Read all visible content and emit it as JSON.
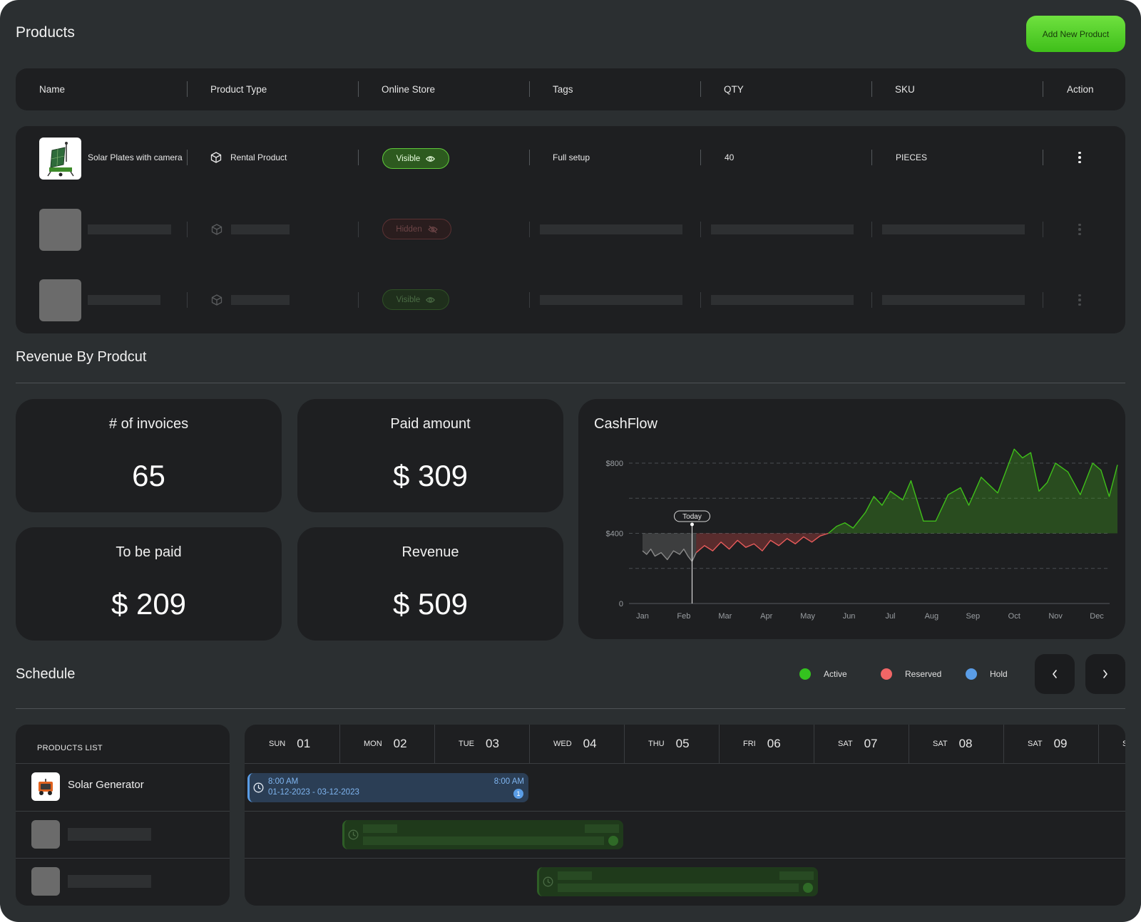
{
  "header": {
    "title": "Products",
    "add_button": "Add New Product"
  },
  "table": {
    "columns": [
      "Name",
      "Product Type",
      "Online Store",
      "Tags",
      "QTY",
      "SKU",
      "Action"
    ],
    "rows": [
      {
        "name": "Solar Plates with camera",
        "type": "Rental Product",
        "store": "Visible",
        "tags": "Full setup",
        "qty": "40",
        "sku": "PIECES"
      },
      {
        "store": "Hidden"
      },
      {
        "store": "Visible"
      }
    ]
  },
  "revenue": {
    "title": "Revenue By Prodcut",
    "stats": [
      {
        "label": "# of invoices",
        "value": "65"
      },
      {
        "label": "Paid amount",
        "value": "$ 309"
      },
      {
        "label": "To be paid",
        "value": "$ 209"
      },
      {
        "label": "Revenue",
        "value": "$ 509"
      }
    ]
  },
  "chart_data": {
    "type": "area",
    "title": "CashFlow",
    "categories": [
      "Jan",
      "Feb",
      "Mar",
      "Apr",
      "May",
      "Jun",
      "Jul",
      "Aug",
      "Sep",
      "Oct",
      "Nov",
      "Dec"
    ],
    "y_ticks": [
      "0",
      "$400",
      "$800"
    ],
    "ylim": [
      0,
      800
    ],
    "baseline": 400,
    "marker_label": "Today",
    "marker_x": 1.2,
    "grid": true,
    "series": [
      {
        "color": "#8a8a8a",
        "x": [
          0,
          0.1,
          0.2,
          0.3,
          0.45,
          0.6,
          0.75,
          0.9,
          1.0,
          1.1,
          1.2,
          1.3
        ],
        "values": [
          300,
          280,
          310,
          270,
          290,
          250,
          300,
          280,
          310,
          270,
          240,
          290
        ]
      },
      {
        "color": "#e85b5b",
        "x": [
          1.3,
          1.5,
          1.7,
          1.9,
          2.1,
          2.3,
          2.5,
          2.7,
          2.9,
          3.1,
          3.3,
          3.5,
          3.7,
          3.9,
          4.1,
          4.3,
          4.5
        ],
        "values": [
          290,
          330,
          300,
          350,
          310,
          360,
          320,
          340,
          300,
          360,
          330,
          370,
          340,
          380,
          350,
          385,
          400
        ]
      },
      {
        "color": "#3fbf1a",
        "x": [
          4.5,
          4.7,
          4.9,
          5.1,
          5.4,
          5.6,
          5.8,
          6.0,
          6.3,
          6.5,
          6.8,
          7.1,
          7.4,
          7.7,
          7.9,
          8.2,
          8.6,
          9.0,
          9.2,
          9.4,
          9.6,
          9.8,
          10.0,
          10.3,
          10.6,
          10.9,
          11.1,
          11.3,
          11.5
        ],
        "values": [
          400,
          440,
          460,
          430,
          520,
          610,
          560,
          640,
          590,
          700,
          470,
          470,
          620,
          660,
          560,
          720,
          630,
          880,
          830,
          860,
          640,
          690,
          800,
          750,
          620,
          800,
          760,
          610,
          790
        ]
      }
    ]
  },
  "schedule": {
    "title": "Schedule",
    "legend": [
      {
        "label": "Active",
        "color": "#34c21f"
      },
      {
        "label": "Reserved",
        "color": "#f06666"
      },
      {
        "label": "Hold",
        "color": "#5a9de6"
      }
    ],
    "products_header": "PRODUCTS LIST",
    "products": [
      "Solar Generator"
    ],
    "days": [
      {
        "name": "SUN",
        "num": "01"
      },
      {
        "name": "MON",
        "num": "02"
      },
      {
        "name": "TUE",
        "num": "03"
      },
      {
        "name": "WED",
        "num": "04"
      },
      {
        "name": "THU",
        "num": "05"
      },
      {
        "name": "FRI",
        "num": "06"
      },
      {
        "name": "SAT",
        "num": "07"
      },
      {
        "name": "SAT",
        "num": "08"
      },
      {
        "name": "SAT",
        "num": "09"
      },
      {
        "name": "SAT",
        "num": ""
      }
    ],
    "event": {
      "start_time": "8:00 AM",
      "end_time": "8:00 AM",
      "range": "01-12-2023 - 03-12-2023",
      "count": "1"
    }
  }
}
